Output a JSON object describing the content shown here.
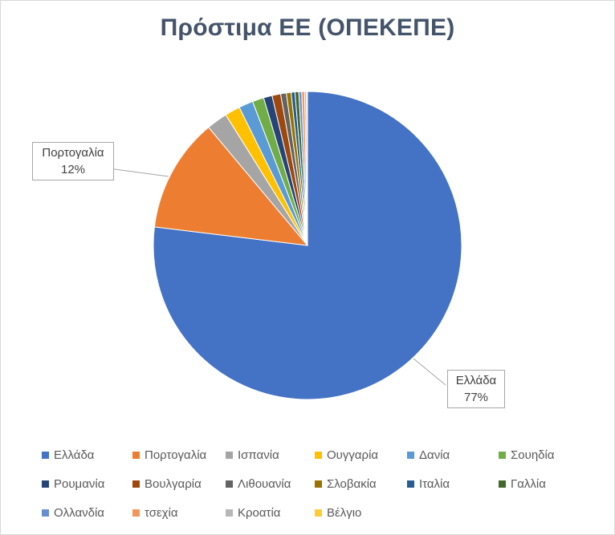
{
  "chart_data": {
    "type": "pie",
    "title": "Πρόστιμα ΕΕ (ΟΠΕΚΕΠΕ)",
    "slices": [
      {
        "label": "Ελλάδα",
        "value": 77,
        "color": "#4472c4"
      },
      {
        "label": "Πορτογαλία",
        "value": 12,
        "color": "#ed7d31"
      },
      {
        "label": "Ισπανία",
        "value": 2.2,
        "color": "#a5a5a5"
      },
      {
        "label": "Ουγγαρία",
        "value": 1.6,
        "color": "#ffc000"
      },
      {
        "label": "Δανία",
        "value": 1.5,
        "color": "#5b9bd5"
      },
      {
        "label": "Σουηδία",
        "value": 1.2,
        "color": "#70ad47"
      },
      {
        "label": "Ρουμανία",
        "value": 0.9,
        "color": "#264478"
      },
      {
        "label": "Βουλγαρία",
        "value": 0.9,
        "color": "#9e480e"
      },
      {
        "label": "Λιθουανία",
        "value": 0.6,
        "color": "#636363"
      },
      {
        "label": "Σλοβακία",
        "value": 0.5,
        "color": "#997300"
      },
      {
        "label": "Ιταλία",
        "value": 0.4,
        "color": "#255e91"
      },
      {
        "label": "Γαλλία",
        "value": 0.4,
        "color": "#43682b"
      },
      {
        "label": "Ολλανδία",
        "value": 0.3,
        "color": "#698ed0"
      },
      {
        "label": "τσεχία",
        "value": 0.3,
        "color": "#f1975a"
      },
      {
        "label": "Κροατία",
        "value": 0.2,
        "color": "#b7b7b7"
      },
      {
        "label": "Βέλγιο",
        "value": 0.1,
        "color": "#ffcd33"
      }
    ],
    "data_labels": [
      {
        "label": "Πορτογαλία",
        "percent": "12%"
      },
      {
        "label": "Ελλάδα",
        "percent": "77%"
      }
    ],
    "legend_position": "bottom"
  }
}
